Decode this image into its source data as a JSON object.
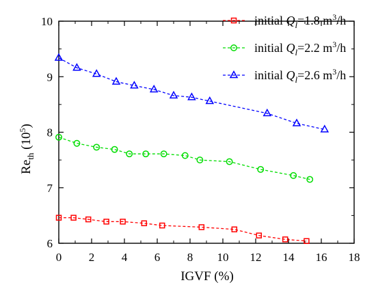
{
  "chart_data": {
    "type": "line",
    "xlabel": "IGVF (%)",
    "ylabel_main": "Re",
    "ylabel_sub": "th",
    "ylabel_unit_open": " (10",
    "ylabel_unit_sup": "5",
    "ylabel_unit_close": ")",
    "xlim": [
      0,
      18
    ],
    "ylim": [
      6,
      10
    ],
    "xticks": [
      "0",
      "2",
      "4",
      "6",
      "8",
      "10",
      "12",
      "14",
      "16",
      "18"
    ],
    "yticks": [
      "6",
      "7",
      "8",
      "9",
      "10"
    ],
    "grid": false,
    "legend_position": "top-right",
    "series": [
      {
        "legend_prefix": "initial ",
        "legend_var": "Q",
        "legend_sub": "l",
        "legend_value": "=1.8 m",
        "legend_sup": "3",
        "legend_suffix": "/h",
        "color": "#ff0000",
        "marker": "square",
        "x": [
          0,
          0.9,
          1.8,
          2.9,
          3.9,
          5.2,
          6.3,
          8.7,
          10.7,
          12.2,
          13.8,
          15.1
        ],
        "y": [
          6.46,
          6.46,
          6.43,
          6.39,
          6.39,
          6.36,
          6.32,
          6.29,
          6.25,
          6.14,
          6.07,
          6.04
        ]
      },
      {
        "legend_prefix": "initial ",
        "legend_var": "Q",
        "legend_sub": "l",
        "legend_value": "=2.2 m",
        "legend_sup": "3",
        "legend_suffix": "/h",
        "color": "#00dd00",
        "marker": "circle",
        "x": [
          0,
          1.1,
          2.3,
          3.4,
          4.3,
          5.3,
          6.4,
          7.7,
          8.6,
          10.4,
          12.3,
          14.3,
          15.3
        ],
        "y": [
          7.91,
          7.8,
          7.73,
          7.69,
          7.61,
          7.61,
          7.61,
          7.58,
          7.5,
          7.47,
          7.33,
          7.22,
          7.15
        ]
      },
      {
        "legend_prefix": "initial ",
        "legend_var": "Q",
        "legend_sub": "l",
        "legend_value": "=2.6 m",
        "legend_sup": "3",
        "legend_suffix": "/h",
        "color": "#0000ff",
        "marker": "triangle",
        "x": [
          0,
          1.1,
          2.3,
          3.5,
          4.6,
          5.8,
          7.0,
          8.1,
          9.2,
          12.7,
          14.5,
          16.2
        ],
        "y": [
          9.34,
          9.16,
          9.05,
          8.91,
          8.84,
          8.77,
          8.66,
          8.63,
          8.56,
          8.34,
          8.16,
          8.05
        ]
      }
    ]
  }
}
